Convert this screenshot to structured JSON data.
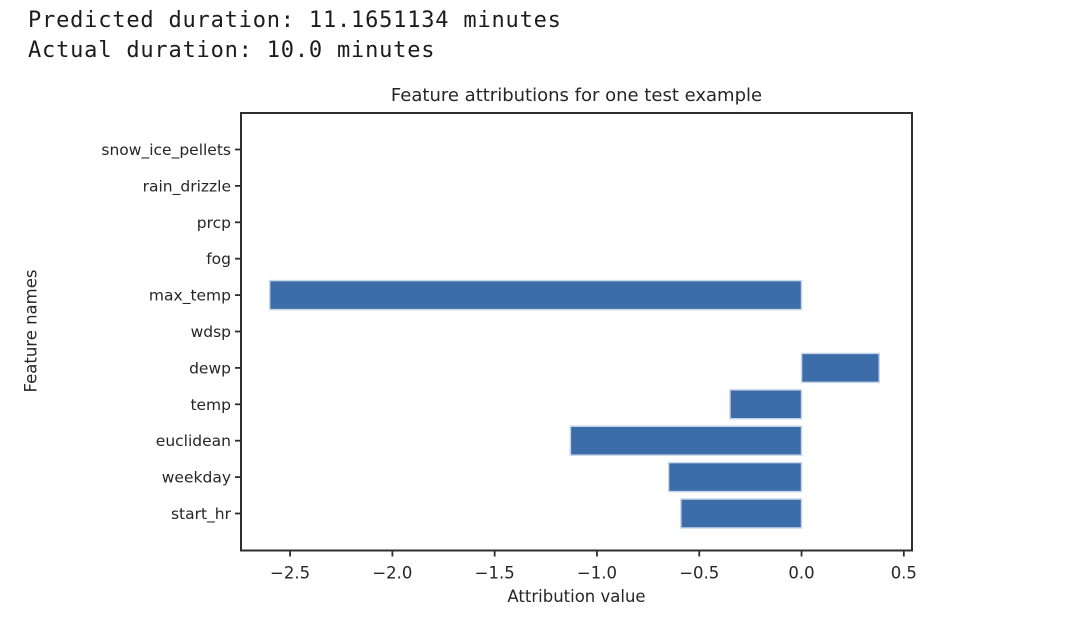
{
  "console": {
    "line1": "Predicted duration: 11.1651134 minutes",
    "line2": "Actual duration: 10.0 minutes"
  },
  "chart_data": {
    "type": "bar",
    "orientation": "horizontal",
    "title": "Feature attributions for one test example",
    "xlabel": "Attribution value",
    "ylabel": "Feature names",
    "categories": [
      "snow_ice_pellets",
      "rain_drizzle",
      "prcp",
      "fog",
      "max_temp",
      "wdsp",
      "dewp",
      "temp",
      "euclidean",
      "weekday",
      "start_hr"
    ],
    "values": [
      0,
      0,
      0,
      0,
      -2.6,
      0,
      0.38,
      -0.35,
      -1.13,
      -0.65,
      -0.59
    ],
    "xticks": [
      {
        "value": -2.5,
        "label": "−2.5"
      },
      {
        "value": -2.0,
        "label": "−2.0"
      },
      {
        "value": -1.5,
        "label": "−1.5"
      },
      {
        "value": -1.0,
        "label": "−1.0"
      },
      {
        "value": -0.5,
        "label": "−0.5"
      },
      {
        "value": 0.0,
        "label": "0.0"
      },
      {
        "value": 0.5,
        "label": "0.5"
      }
    ],
    "xlim": [
      -2.74,
      0.54
    ],
    "grid": false,
    "legend": null,
    "colors": {
      "bar_fill": "#3d6da8",
      "bar_edge": "#c9d7ea",
      "axis": "#2e2e2e",
      "text": "#262626",
      "background": "#ffffff"
    }
  }
}
